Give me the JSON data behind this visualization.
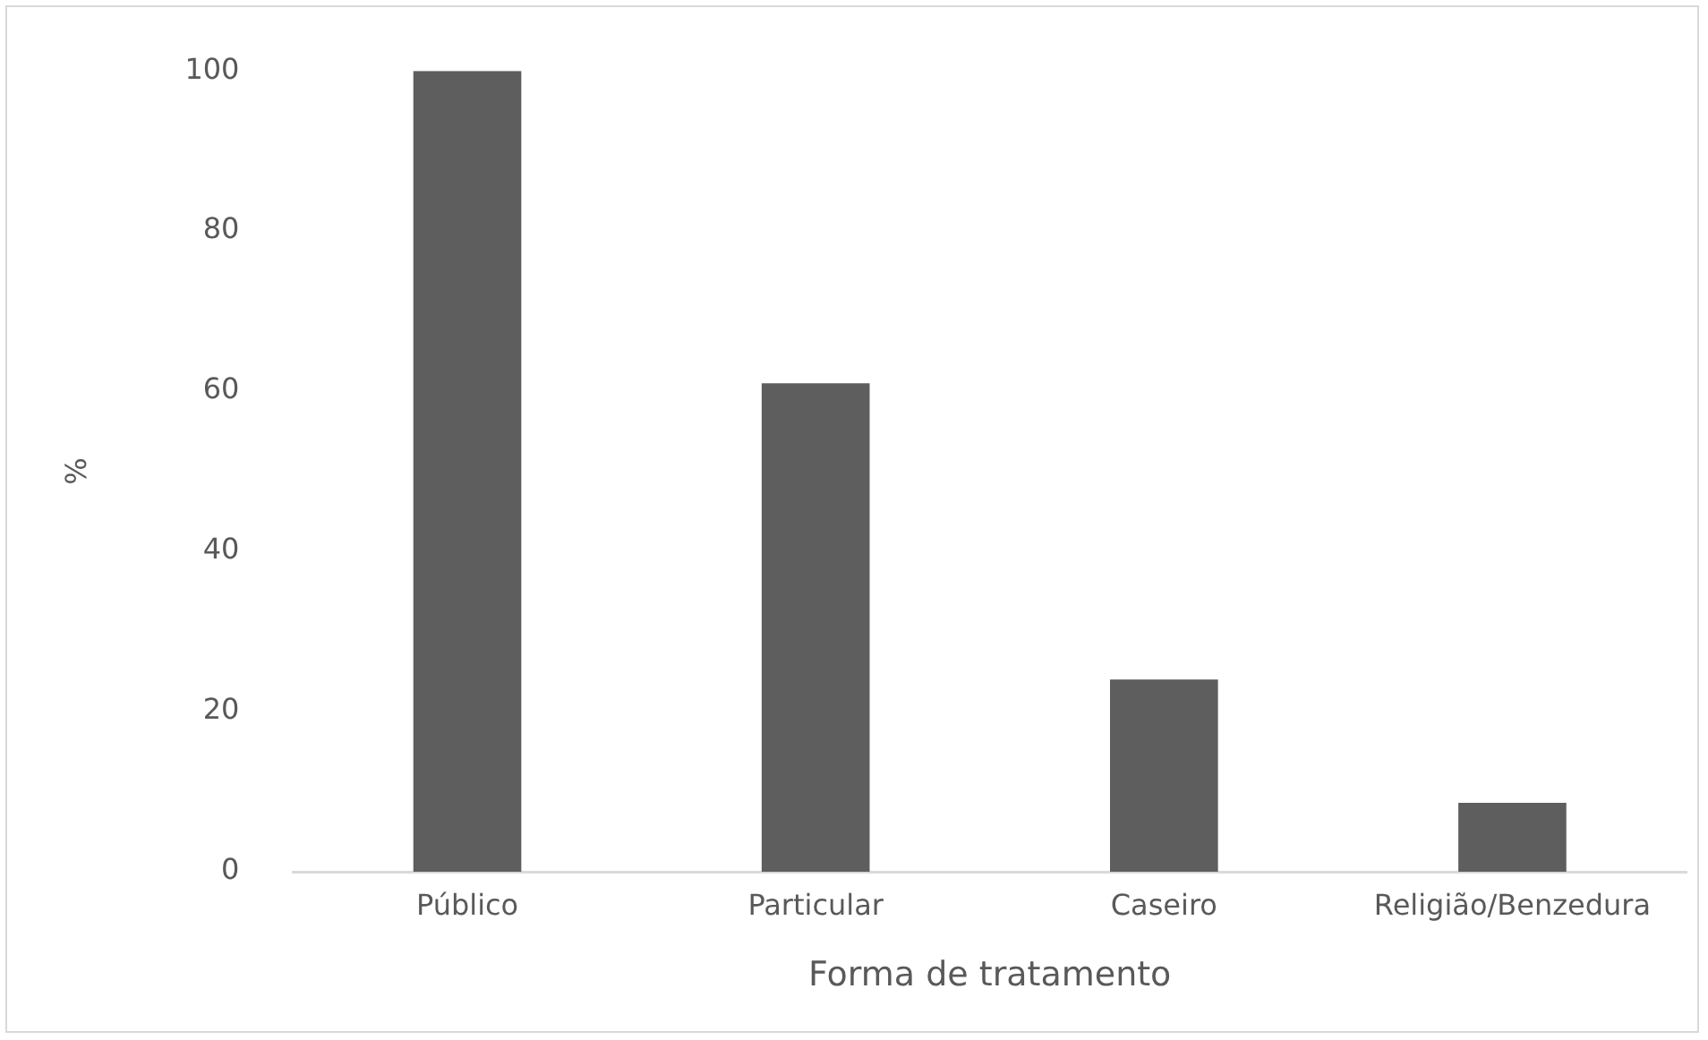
{
  "chart_data": {
    "type": "bar",
    "xlabel": "Forma de tratamento",
    "ylabel": "%",
    "categories": [
      "Público",
      "Particular",
      "Caseiro",
      "Religião/Benzedura"
    ],
    "values": [
      100,
      61,
      24,
      8.6
    ],
    "color": "#5e5e5e",
    "ylim": [
      0,
      100
    ],
    "yticks": [
      0,
      20,
      40,
      60,
      80,
      100
    ],
    "grid": false,
    "legend": false
  }
}
